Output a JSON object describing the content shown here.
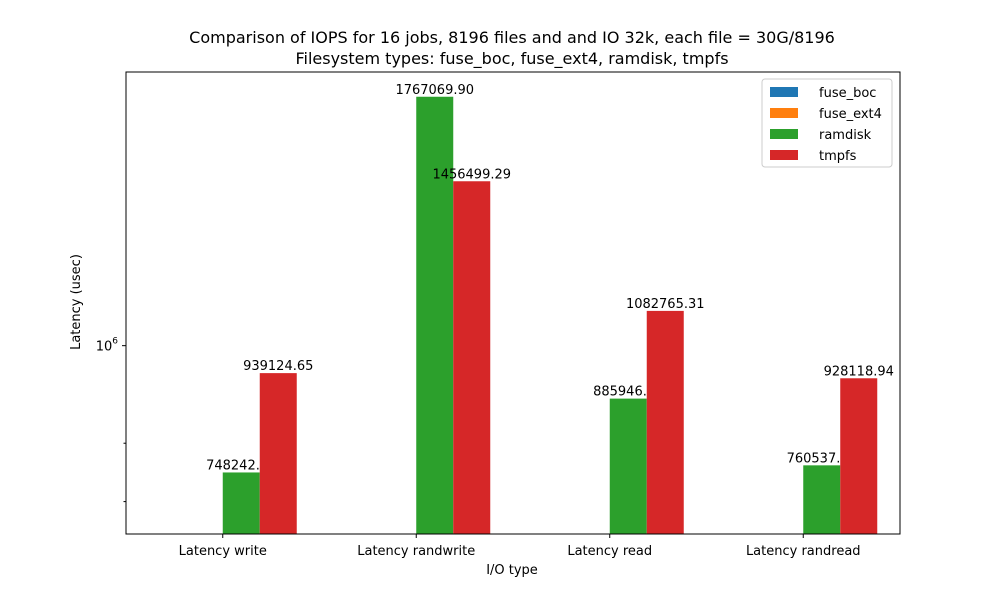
{
  "chart_data": {
    "type": "bar",
    "title": "Comparison of IOPS for 16 jobs, 8196 files and  and IO 32k, each file = 30G/8196",
    "subtitle": "Filesystem types: fuse_boc, fuse_ext4, ramdisk, tmpfs",
    "xlabel": "I/O type",
    "ylabel": "Latency (usec)",
    "yscale": "log",
    "ylim": [
      650000,
      1870000
    ],
    "ytick_major": {
      "value": 1000000,
      "base": "10",
      "exp": "6"
    },
    "yticks_minor": [
      700000,
      800000
    ],
    "categories": [
      "Latency write",
      "Latency randwrite",
      "Latency read",
      "Latency randread"
    ],
    "series": [
      {
        "name": "fuse_boc",
        "color": "#1f77b4",
        "values": [
          null,
          null,
          null,
          null
        ],
        "labels": [
          "",
          "",
          "",
          ""
        ]
      },
      {
        "name": "fuse_ext4",
        "color": "#ff7f0e",
        "values": [
          null,
          null,
          null,
          null
        ],
        "labels": [
          "",
          "",
          "",
          ""
        ]
      },
      {
        "name": "ramdisk",
        "color": "#2ca02c",
        "values": [
          748242.74,
          1767069.9,
          885946.62,
          760537.83
        ],
        "labels": [
          "748242.74",
          "1767069.90",
          "885946.62",
          "760537.83"
        ]
      },
      {
        "name": "tmpfs",
        "color": "#d62728",
        "values": [
          939124.65,
          1456499.29,
          1082765.31,
          928118.94
        ],
        "labels": [
          "939124.65",
          "1456499.29",
          "1082765.31",
          "928118.94"
        ]
      }
    ],
    "legend_position": "top-right",
    "grid": false
  }
}
